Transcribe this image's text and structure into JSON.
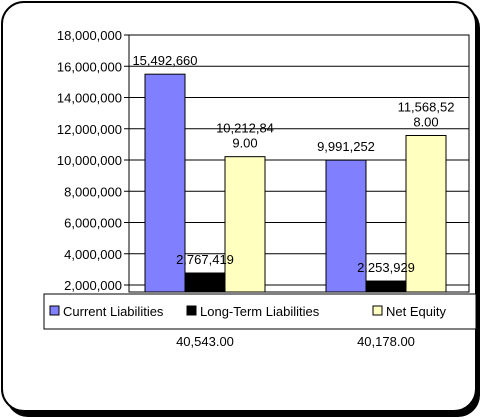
{
  "chart_data": {
    "type": "bar",
    "title": "",
    "xlabel": "",
    "ylabel": "",
    "categories": [
      "40,543.00",
      "40,178.00"
    ],
    "ylim": [
      0,
      18000000
    ],
    "yticks": [
      "2,000,000",
      "4,000,000",
      "6,000,000",
      "8,000,000",
      "10,000,000",
      "12,000,000",
      "14,000,000",
      "16,000,000",
      "18,000,000"
    ],
    "grid": true,
    "legend_position": "bottom",
    "series": [
      {
        "name": "Current Liabilities",
        "color": "#8080FF",
        "values": [
          15492660,
          9991252
        ],
        "labels": [
          [
            "15,492,660"
          ],
          [
            "9,991,252"
          ]
        ]
      },
      {
        "name": "Long-Term Liabilities",
        "color": "#000000",
        "values": [
          2767419,
          2253929
        ],
        "labels": [
          [
            "2,767,419"
          ],
          [
            "2,253,929"
          ]
        ]
      },
      {
        "name": "Net Equity",
        "color": "#FFFFC0",
        "values": [
          10212849,
          11568528
        ],
        "labels": [
          [
            "10,212,84",
            "9.00"
          ],
          [
            "11,568,52",
            "8.00"
          ]
        ]
      }
    ]
  }
}
